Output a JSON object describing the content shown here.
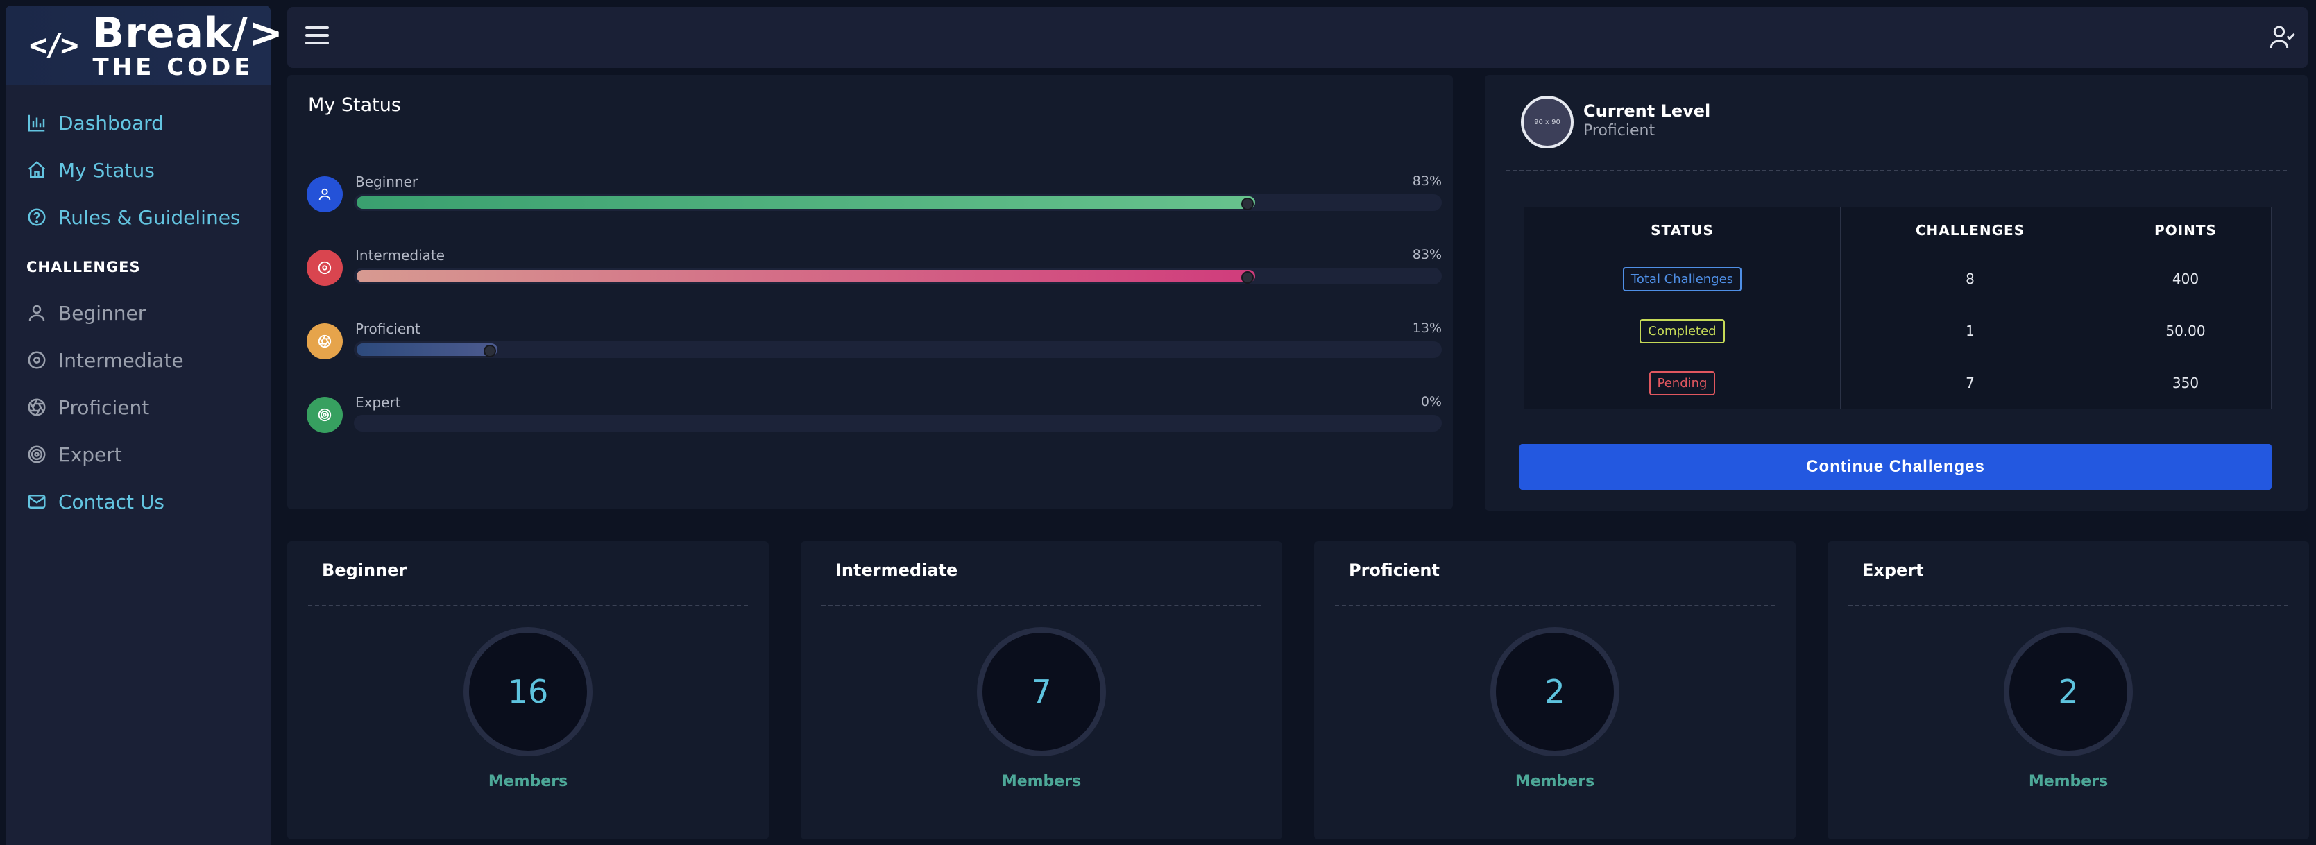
{
  "brand": {
    "top": "Break/>",
    "bottom": "THE CODE",
    "icon": "code-brackets-icon"
  },
  "sidebar": {
    "items": [
      {
        "label": "Dashboard",
        "icon": "bar-chart-icon"
      },
      {
        "label": "My Status",
        "icon": "home-icon"
      },
      {
        "label": "Rules & Guidelines",
        "icon": "help-circle-icon"
      }
    ],
    "section_label": "CHALLENGES",
    "challenge_items": [
      {
        "label": "Beginner",
        "icon": "user-icon"
      },
      {
        "label": "Intermediate",
        "icon": "disc-icon"
      },
      {
        "label": "Proficient",
        "icon": "aperture-icon"
      },
      {
        "label": "Expert",
        "icon": "target-icon"
      }
    ],
    "contact": {
      "label": "Contact Us",
      "icon": "mail-icon"
    }
  },
  "status": {
    "title": "My Status",
    "rows": [
      {
        "label": "Beginner",
        "pct_label": "83%",
        "pct": 0.83,
        "color_from": "#3aa06f",
        "color_to": "#67c28d",
        "avatar_color": "#2452d8"
      },
      {
        "label": "Intermediate",
        "pct_label": "83%",
        "pct": 0.83,
        "color_from": "#d79a91",
        "color_to": "#d03c7c",
        "avatar_color": "#d9454f"
      },
      {
        "label": "Proficient",
        "pct_label": "13%",
        "pct": 0.13,
        "color_from": "#2d4a7c",
        "color_to": "#4c5a8e",
        "avatar_color": "#e6a44b"
      },
      {
        "label": "Expert",
        "pct_label": "0%",
        "pct": 0,
        "color_from": "#3aa06f",
        "color_to": "#3aa06f",
        "avatar_color": "#37a060"
      }
    ]
  },
  "level": {
    "title": "Current Level",
    "value": "Proficient",
    "badge_text": "90 x 90"
  },
  "stats_table": {
    "headers": [
      "STATUS",
      "CHALLENGES",
      "POINTS"
    ],
    "rows": [
      {
        "status": "Total Challenges",
        "challenges": "8",
        "points": "400",
        "color": "#4f8fe6"
      },
      {
        "status": "Completed",
        "challenges": "1",
        "points": "50.00",
        "color": "#c5d957"
      },
      {
        "status": "Pending",
        "challenges": "7",
        "points": "350",
        "color": "#e0575f"
      }
    ]
  },
  "continue_label": "Continue Challenges",
  "cards": [
    {
      "title": "Beginner",
      "count": "16",
      "footer": "Members"
    },
    {
      "title": "Intermediate",
      "count": "7",
      "footer": "Members"
    },
    {
      "title": "Proficient",
      "count": "2",
      "footer": "Members"
    },
    {
      "title": "Expert",
      "count": "2",
      "footer": "Members"
    }
  ]
}
